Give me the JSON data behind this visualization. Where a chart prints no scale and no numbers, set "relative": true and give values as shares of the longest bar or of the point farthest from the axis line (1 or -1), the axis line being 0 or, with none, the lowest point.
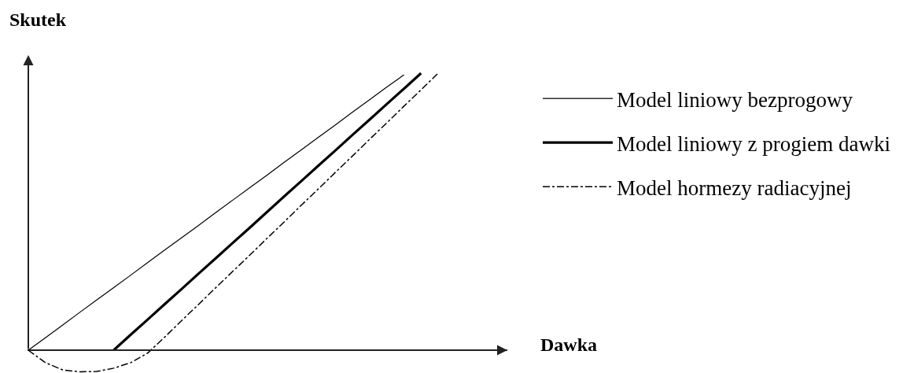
{
  "chart_data": {
    "type": "line",
    "relative": true,
    "ylabel": "Skutek",
    "annotations": [
      "Dawka"
    ],
    "legend": "top right",
    "categories": [
      null,
      null,
      null,
      null,
      null,
      null,
      null,
      null,
      null,
      null,
      null,
      null,
      null,
      null,
      null,
      null,
      null,
      null,
      null,
      null,
      null,
      null,
      null,
      null,
      null
    ],
    "series": [
      {
        "name": "Model liniowy bezprogowy",
        "color": "#000000",
        "line_style": "solid",
        "values": [
          0,
          0.045,
          0.09,
          0.136,
          0.181,
          0.226,
          0.271,
          0.317,
          0.362,
          0.407,
          0.452,
          0.498,
          0.543,
          0.588,
          0.633,
          0.679,
          0.724,
          0.769,
          0.814,
          0.86,
          0.905,
          0.95,
          0.994,
          null,
          null
        ]
      },
      {
        "name": "Model liniowy z progiem dawki",
        "color": "#000000",
        "line_style": "solid",
        "values": [
          null,
          null,
          null,
          null,
          null,
          0,
          0.056,
          0.111,
          0.167,
          0.222,
          0.278,
          0.333,
          0.389,
          0.444,
          0.5,
          0.556,
          0.611,
          0.667,
          0.722,
          0.778,
          0.833,
          0.889,
          0.944,
          1,
          null
        ]
      },
      {
        "name": "Model hormezy radiacyjnej",
        "color": "#000000",
        "line_style": "dashdot",
        "values": [
          0,
          -0.045,
          -0.071,
          -0.078,
          -0.077,
          -0.065,
          -0.045,
          -0.01,
          0.048,
          0.108,
          0.167,
          0.227,
          0.286,
          0.345,
          0.405,
          0.464,
          0.524,
          0.583,
          0.643,
          0.702,
          0.762,
          0.821,
          0.881,
          0.94,
          1
        ]
      }
    ]
  }
}
